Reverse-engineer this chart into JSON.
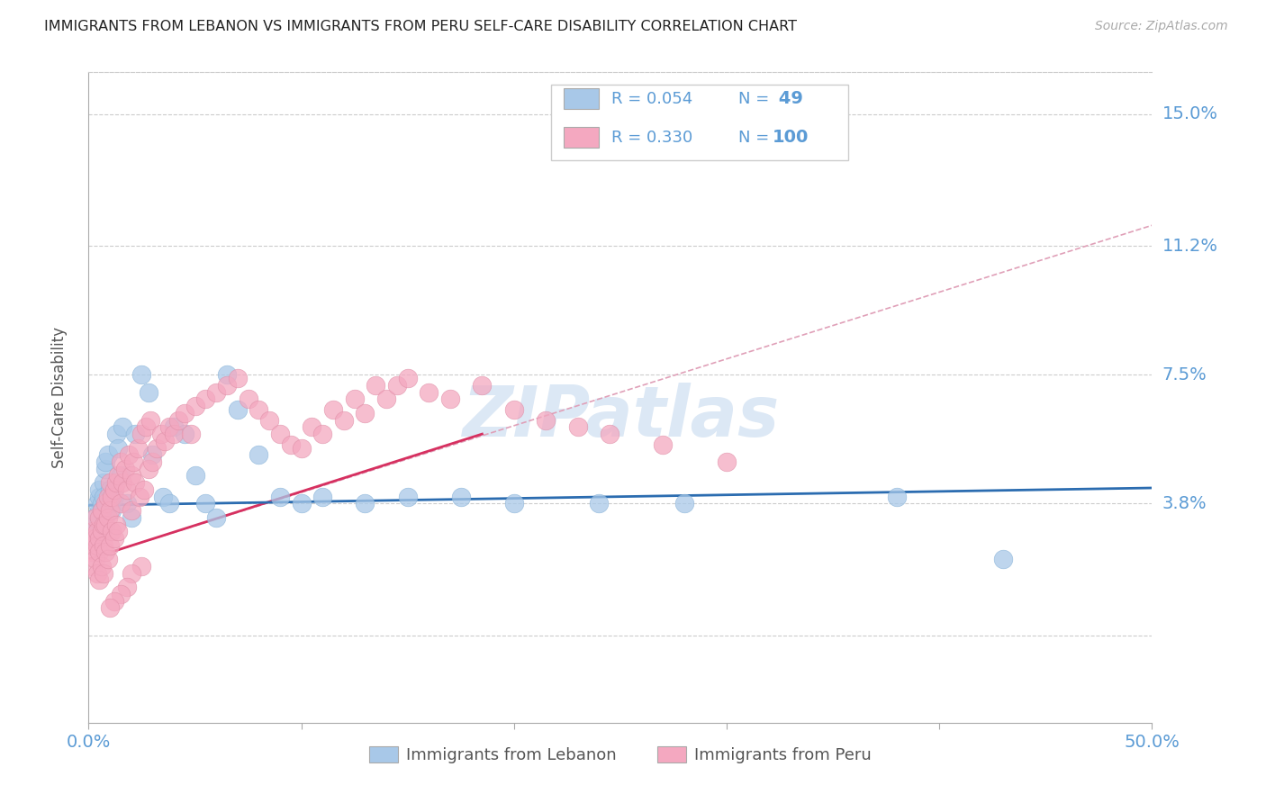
{
  "title": "IMMIGRANTS FROM LEBANON VS IMMIGRANTS FROM PERU SELF-CARE DISABILITY CORRELATION CHART",
  "source": "Source: ZipAtlas.com",
  "ylabel": "Self-Care Disability",
  "xlim": [
    0.0,
    0.5
  ],
  "ylim": [
    -0.025,
    0.162
  ],
  "ytick_positions": [
    0.0,
    0.038,
    0.075,
    0.112,
    0.15
  ],
  "ytick_labels_right": {
    "0.038": "3.8%",
    "0.075": "7.5%",
    "0.112": "11.2%",
    "0.150": "15.0%"
  },
  "legend_r_n": [
    {
      "r": "0.054",
      "n": "49"
    },
    {
      "r": "0.330",
      "n": "100"
    }
  ],
  "legend_series": [
    "Immigrants from Lebanon",
    "Immigrants from Peru"
  ],
  "watermark": "ZIPatlas",
  "blue_scatter_x": [
    0.001,
    0.002,
    0.003,
    0.004,
    0.004,
    0.005,
    0.005,
    0.006,
    0.006,
    0.007,
    0.007,
    0.008,
    0.008,
    0.009,
    0.01,
    0.01,
    0.011,
    0.012,
    0.013,
    0.014,
    0.015,
    0.016,
    0.018,
    0.02,
    0.022,
    0.025,
    0.028,
    0.03,
    0.035,
    0.038,
    0.04,
    0.045,
    0.05,
    0.055,
    0.06,
    0.065,
    0.07,
    0.08,
    0.09,
    0.1,
    0.11,
    0.13,
    0.15,
    0.175,
    0.2,
    0.24,
    0.28,
    0.38,
    0.43
  ],
  "blue_scatter_y": [
    0.028,
    0.03,
    0.032,
    0.035,
    0.038,
    0.04,
    0.042,
    0.038,
    0.036,
    0.044,
    0.04,
    0.048,
    0.05,
    0.052,
    0.042,
    0.038,
    0.036,
    0.04,
    0.058,
    0.054,
    0.046,
    0.06,
    0.038,
    0.034,
    0.058,
    0.075,
    0.07,
    0.052,
    0.04,
    0.038,
    0.06,
    0.058,
    0.046,
    0.038,
    0.034,
    0.075,
    0.065,
    0.052,
    0.04,
    0.038,
    0.04,
    0.038,
    0.04,
    0.04,
    0.038,
    0.038,
    0.038,
    0.04,
    0.022
  ],
  "pink_scatter_x": [
    0.001,
    0.001,
    0.002,
    0.002,
    0.002,
    0.003,
    0.003,
    0.003,
    0.004,
    0.004,
    0.004,
    0.005,
    0.005,
    0.005,
    0.005,
    0.006,
    0.006,
    0.006,
    0.007,
    0.007,
    0.007,
    0.008,
    0.008,
    0.008,
    0.009,
    0.009,
    0.009,
    0.01,
    0.01,
    0.01,
    0.011,
    0.011,
    0.012,
    0.012,
    0.013,
    0.013,
    0.014,
    0.014,
    0.015,
    0.015,
    0.016,
    0.017,
    0.018,
    0.019,
    0.02,
    0.02,
    0.021,
    0.022,
    0.023,
    0.024,
    0.025,
    0.026,
    0.027,
    0.028,
    0.029,
    0.03,
    0.032,
    0.034,
    0.036,
    0.038,
    0.04,
    0.042,
    0.045,
    0.048,
    0.05,
    0.055,
    0.06,
    0.065,
    0.07,
    0.075,
    0.08,
    0.085,
    0.09,
    0.095,
    0.1,
    0.105,
    0.11,
    0.115,
    0.12,
    0.125,
    0.13,
    0.135,
    0.14,
    0.145,
    0.15,
    0.16,
    0.17,
    0.185,
    0.2,
    0.215,
    0.23,
    0.245,
    0.27,
    0.3,
    0.025,
    0.02,
    0.018,
    0.015,
    0.012,
    0.01
  ],
  "pink_scatter_y": [
    0.028,
    0.024,
    0.03,
    0.026,
    0.02,
    0.034,
    0.028,
    0.022,
    0.03,
    0.026,
    0.018,
    0.034,
    0.028,
    0.024,
    0.016,
    0.036,
    0.03,
    0.02,
    0.032,
    0.026,
    0.018,
    0.038,
    0.032,
    0.024,
    0.04,
    0.034,
    0.022,
    0.044,
    0.036,
    0.026,
    0.04,
    0.03,
    0.042,
    0.028,
    0.044,
    0.032,
    0.046,
    0.03,
    0.05,
    0.038,
    0.044,
    0.048,
    0.042,
    0.052,
    0.046,
    0.036,
    0.05,
    0.044,
    0.054,
    0.04,
    0.058,
    0.042,
    0.06,
    0.048,
    0.062,
    0.05,
    0.054,
    0.058,
    0.056,
    0.06,
    0.058,
    0.062,
    0.064,
    0.058,
    0.066,
    0.068,
    0.07,
    0.072,
    0.074,
    0.068,
    0.065,
    0.062,
    0.058,
    0.055,
    0.054,
    0.06,
    0.058,
    0.065,
    0.062,
    0.068,
    0.064,
    0.072,
    0.068,
    0.072,
    0.074,
    0.07,
    0.068,
    0.072,
    0.065,
    0.062,
    0.06,
    0.058,
    0.055,
    0.05,
    0.02,
    0.018,
    0.014,
    0.012,
    0.01,
    0.008
  ],
  "blue_line_x": [
    0.0,
    0.5
  ],
  "blue_line_y": [
    0.0375,
    0.0425
  ],
  "pink_solid_line_x": [
    0.0,
    0.185
  ],
  "pink_solid_line_y": [
    0.022,
    0.058
  ],
  "pink_dashed_line_x": [
    0.0,
    0.5
  ],
  "pink_dashed_line_y": [
    0.022,
    0.118
  ],
  "title_color": "#222222",
  "axis_color": "#5b9bd5",
  "grid_color": "#cccccc",
  "blue_dot_color": "#a8c8e8",
  "pink_dot_color": "#f4a8c0",
  "blue_line_color": "#2b6cb0",
  "pink_solid_line_color": "#d63060",
  "pink_dashed_line_color": "#e0a0b8",
  "watermark_color": "#dce8f5"
}
